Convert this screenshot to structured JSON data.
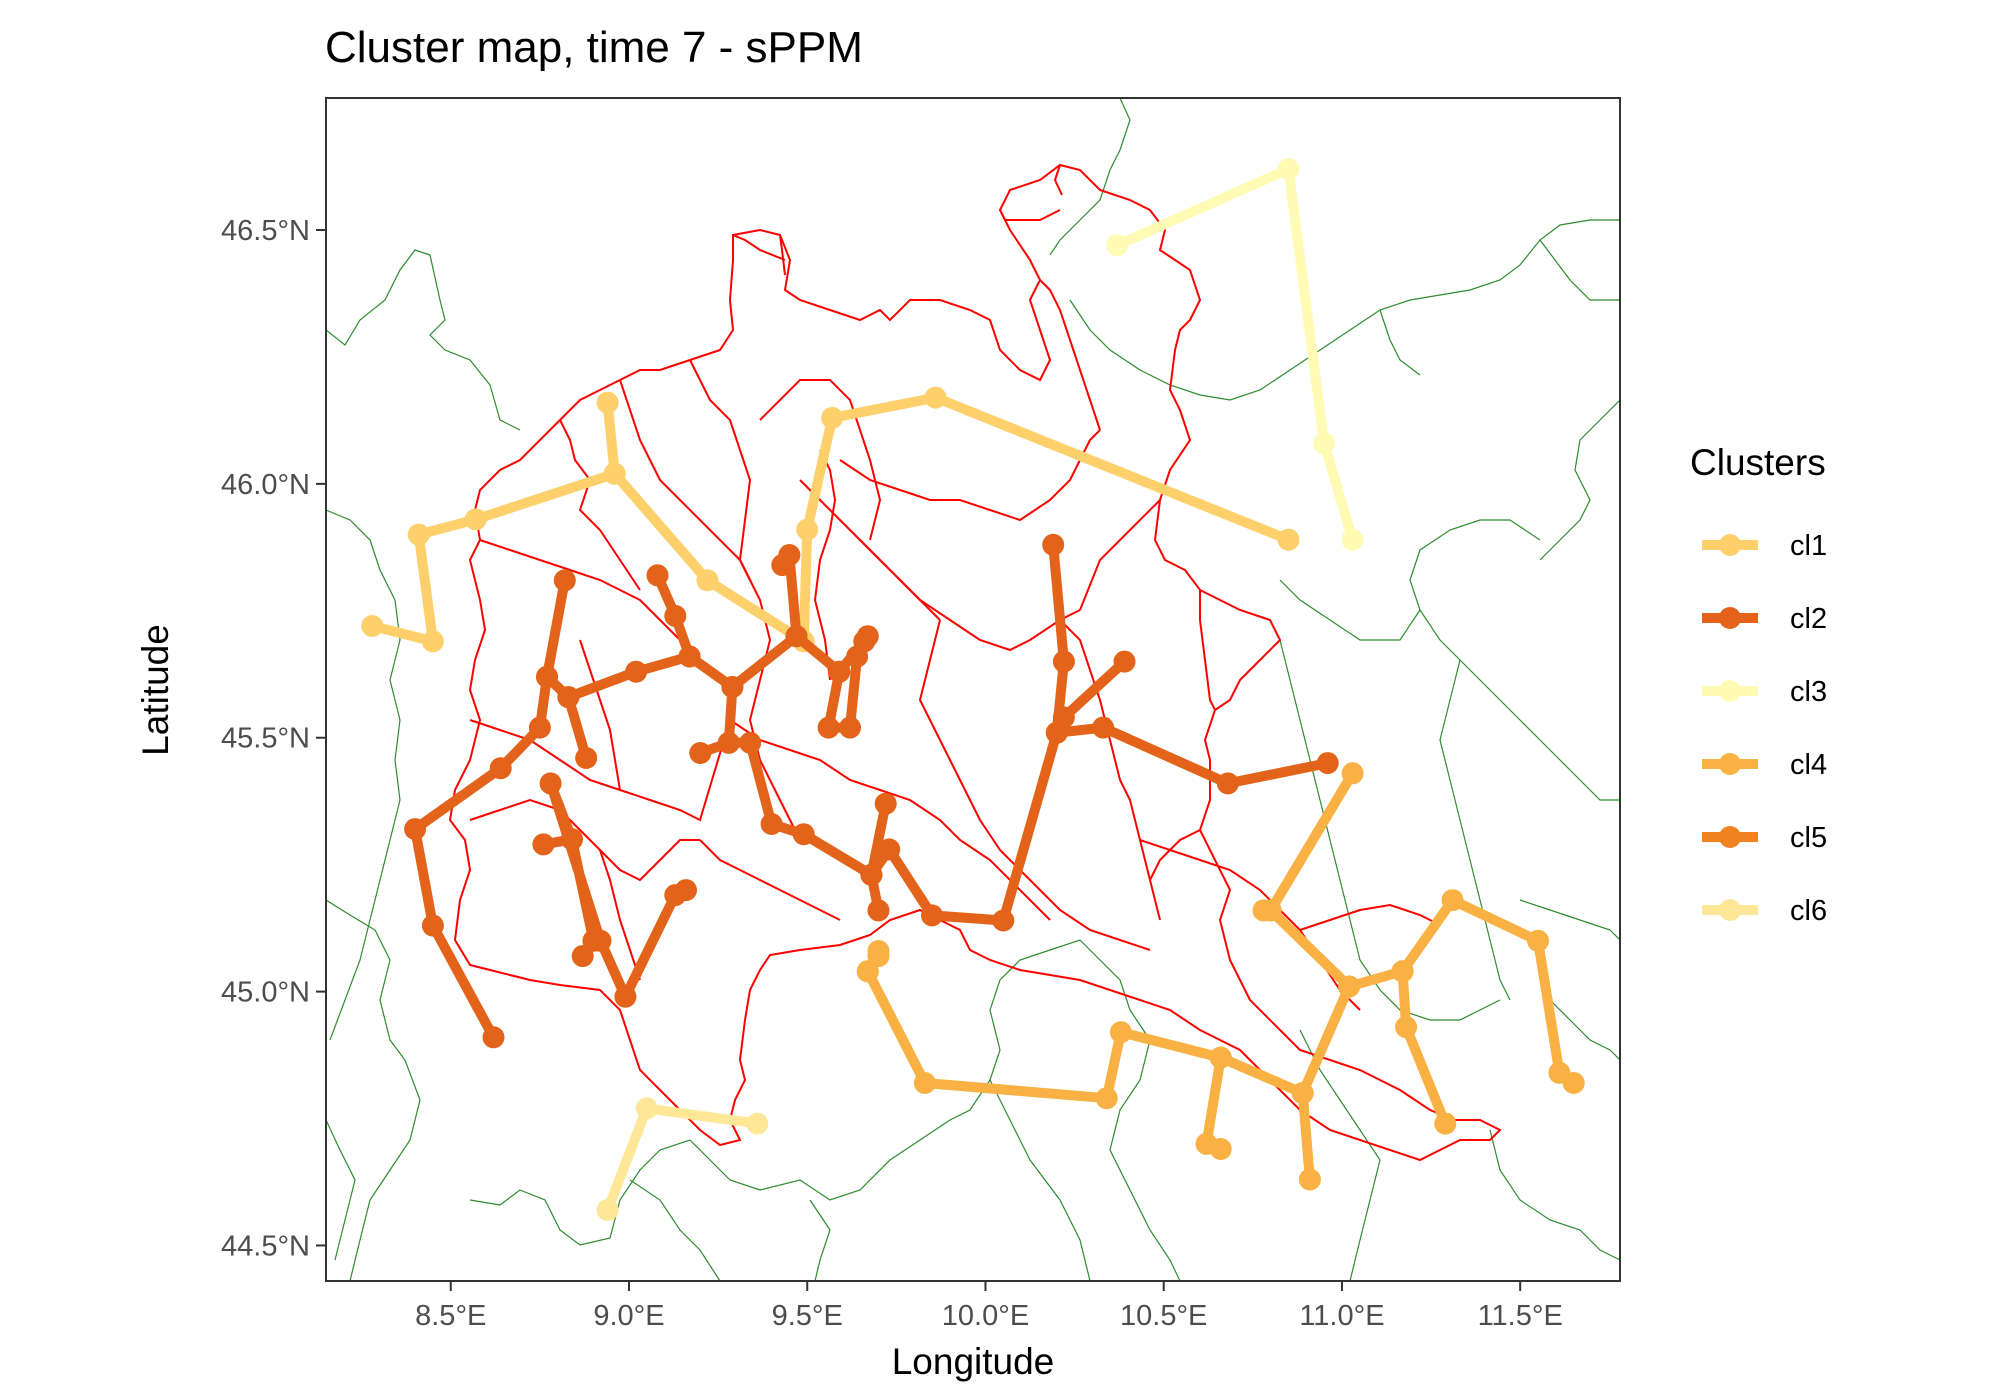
{
  "title": "Cluster map, time 7 - sPPM",
  "axes": {
    "x": {
      "label": "Longitude",
      "ticks": [
        "8.5°E",
        "9.0°E",
        "9.5°E",
        "10.0°E",
        "10.5°E",
        "11.0°E",
        "11.5°E"
      ]
    },
    "y": {
      "label": "Latitude",
      "ticks": [
        "44.5°N",
        "45.0°N",
        "45.5°N",
        "46.0°N",
        "46.5°N"
      ]
    }
  },
  "legend": {
    "title": "Clusters",
    "items": [
      "cl1",
      "cl2",
      "cl3",
      "cl4",
      "cl5",
      "cl6"
    ]
  },
  "colors": {
    "cl1": "#fdd06b",
    "cl2": "#e3631a",
    "cl3": "#fffbb4",
    "cl4": "#f8b142",
    "cl5": "#f0821f",
    "cl6": "#fee898",
    "boundary_red": "#ff0000",
    "boundary_green": "#2e8b2e"
  },
  "chart_data": {
    "type": "map",
    "xlim": [
      8.15,
      11.78
    ],
    "ylim": [
      44.43,
      46.76
    ],
    "grid": false,
    "legend_position": "right",
    "series": [
      {
        "name": "cl1",
        "color": "#fdd06b",
        "paths": [
          [
            [
              8.28,
              45.72
            ],
            [
              8.45,
              45.69
            ],
            [
              8.41,
              45.9
            ],
            [
              8.57,
              45.93
            ],
            [
              8.96,
              46.02
            ],
            [
              9.22,
              45.81
            ],
            [
              9.49,
              45.69
            ],
            [
              9.5,
              45.91
            ],
            [
              9.57,
              46.13
            ],
            [
              9.86,
              46.17
            ],
            [
              10.85,
              45.89
            ]
          ],
          [
            [
              8.94,
              46.16
            ],
            [
              8.96,
              46.02
            ]
          ]
        ]
      },
      {
        "name": "cl2",
        "color": "#e3631a",
        "paths": [
          [
            [
              8.62,
              44.91
            ],
            [
              8.45,
              45.13
            ],
            [
              8.4,
              45.32
            ],
            [
              8.64,
              45.44
            ],
            [
              8.75,
              45.52
            ],
            [
              8.77,
              45.62
            ],
            [
              8.82,
              45.81
            ]
          ],
          [
            [
              8.77,
              45.62
            ],
            [
              8.83,
              45.58
            ],
            [
              8.88,
              45.46
            ]
          ],
          [
            [
              8.83,
              45.58
            ],
            [
              9.02,
              45.63
            ],
            [
              9.17,
              45.66
            ],
            [
              9.29,
              45.6
            ],
            [
              9.47,
              45.7
            ],
            [
              9.59,
              45.63
            ],
            [
              9.66,
              45.69
            ]
          ],
          [
            [
              9.17,
              45.66
            ],
            [
              9.13,
              45.74
            ],
            [
              9.08,
              45.82
            ]
          ],
          [
            [
              9.29,
              45.6
            ],
            [
              9.28,
              45.49
            ],
            [
              9.2,
              45.47
            ]
          ],
          [
            [
              9.28,
              45.49
            ],
            [
              9.34,
              45.49
            ],
            [
              9.4,
              45.33
            ],
            [
              9.49,
              45.31
            ],
            [
              9.68,
              45.23
            ],
            [
              9.73,
              45.28
            ],
            [
              9.85,
              45.15
            ],
            [
              10.05,
              45.14
            ],
            [
              10.2,
              45.51
            ],
            [
              10.33,
              45.52
            ],
            [
              10.68,
              45.41
            ],
            [
              10.96,
              45.45
            ]
          ],
          [
            [
              9.47,
              45.7
            ],
            [
              9.45,
              45.86
            ],
            [
              9.43,
              45.84
            ]
          ],
          [
            [
              9.59,
              45.63
            ],
            [
              9.56,
              45.52
            ],
            [
              9.62,
              45.52
            ],
            [
              9.64,
              45.66
            ],
            [
              9.67,
              45.7
            ]
          ],
          [
            [
              10.2,
              45.51
            ],
            [
              10.22,
              45.65
            ],
            [
              10.19,
              45.88
            ]
          ],
          [
            [
              10.22,
              45.54
            ],
            [
              10.39,
              45.65
            ]
          ],
          [
            [
              9.72,
              45.37
            ],
            [
              9.68,
              45.23
            ],
            [
              9.7,
              45.16
            ]
          ],
          [
            [
              8.76,
              45.29
            ],
            [
              8.84,
              45.3
            ],
            [
              8.9,
              45.1
            ],
            [
              8.87,
              45.07
            ]
          ],
          [
            [
              8.84,
              45.3
            ],
            [
              8.78,
              45.41
            ],
            [
              8.92,
              45.1
            ],
            [
              8.99,
              44.99
            ],
            [
              9.13,
              45.19
            ],
            [
              9.16,
              45.2
            ]
          ]
        ]
      },
      {
        "name": "cl3",
        "color": "#fffbb4",
        "paths": [
          [
            [
              10.37,
              46.47
            ],
            [
              10.85,
              46.62
            ],
            [
              10.95,
              46.08
            ],
            [
              11.03,
              45.89
            ]
          ]
        ]
      },
      {
        "name": "cl4",
        "color": "#f8b142",
        "paths": [
          [
            [
              11.03,
              45.43
            ],
            [
              10.8,
              45.16
            ],
            [
              11.02,
              45.01
            ],
            [
              11.17,
              45.04
            ],
            [
              11.31,
              45.18
            ],
            [
              11.55,
              45.1
            ],
            [
              11.61,
              44.84
            ],
            [
              11.65,
              44.82
            ]
          ],
          [
            [
              10.8,
              45.16
            ],
            [
              10.78,
              45.16
            ]
          ],
          [
            [
              11.02,
              45.01
            ],
            [
              10.89,
              44.8
            ],
            [
              10.91,
              44.63
            ]
          ],
          [
            [
              10.89,
              44.8
            ],
            [
              10.66,
              44.87
            ],
            [
              10.62,
              44.7
            ],
            [
              10.66,
              44.69
            ]
          ],
          [
            [
              10.66,
              44.87
            ],
            [
              10.38,
              44.92
            ],
            [
              10.34,
              44.79
            ],
            [
              9.83,
              44.82
            ],
            [
              9.67,
              45.04
            ],
            [
              9.7,
              45.08
            ]
          ],
          [
            [
              11.17,
              45.04
            ],
            [
              11.18,
              44.93
            ],
            [
              11.29,
              44.74
            ]
          ],
          [
            [
              9.67,
              45.04
            ],
            [
              9.7,
              45.07
            ]
          ]
        ]
      },
      {
        "name": "cl5",
        "color": "#f0821f",
        "paths": []
      },
      {
        "name": "cl6",
        "color": "#fee898",
        "paths": [
          [
            [
              8.94,
              44.57
            ],
            [
              9.05,
              44.77
            ],
            [
              9.36,
              44.74
            ]
          ]
        ]
      }
    ]
  }
}
